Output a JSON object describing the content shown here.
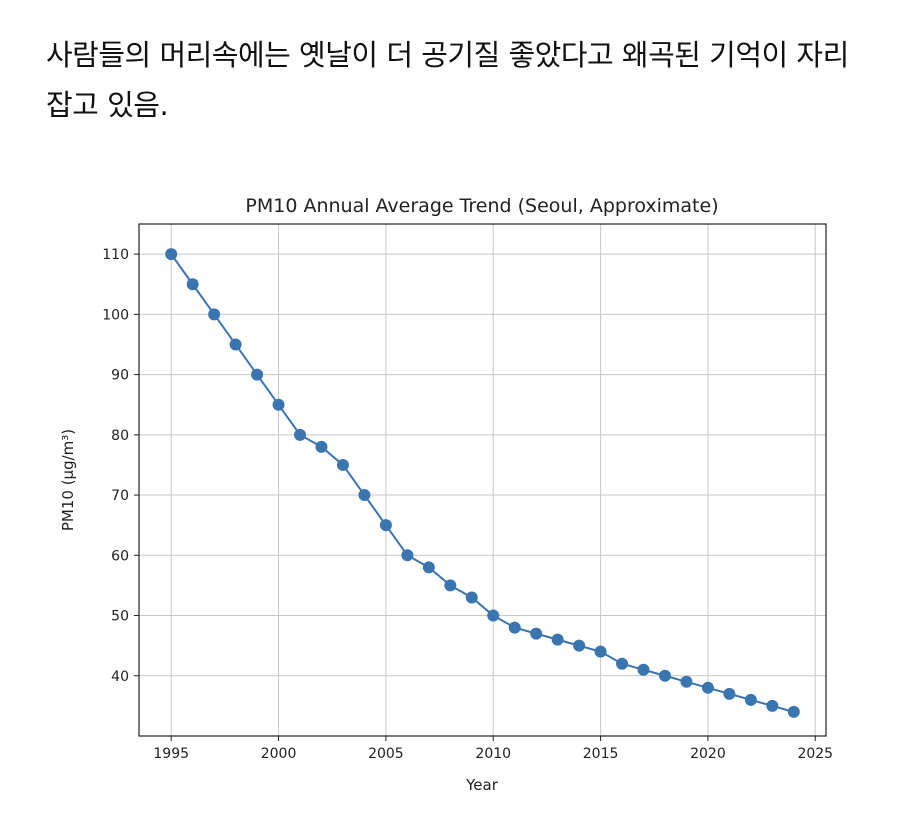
{
  "caption": "사람들의 머리속에는 옛날이 더 공기질 좋았다고 왜곡된 기억이 자리잡고 있음.",
  "chart_data": {
    "type": "line",
    "title": "PM10 Annual Average Trend (Seoul, Approximate)",
    "xlabel": "Year",
    "ylabel": "PM10 (µg/m³)",
    "x": [
      1995,
      1996,
      1997,
      1998,
      1999,
      2000,
      2001,
      2002,
      2003,
      2004,
      2005,
      2006,
      2007,
      2008,
      2009,
      2010,
      2011,
      2012,
      2013,
      2014,
      2015,
      2016,
      2017,
      2018,
      2019,
      2020,
      2021,
      2022,
      2023,
      2024
    ],
    "values": [
      110,
      105,
      100,
      95,
      90,
      85,
      80,
      78,
      75,
      70,
      65,
      60,
      58,
      55,
      53,
      50,
      48,
      47,
      46,
      45,
      44,
      42,
      41,
      40,
      39,
      38,
      37,
      36,
      35,
      34
    ],
    "xlim": [
      1993.5,
      2025.5
    ],
    "ylim": [
      30,
      115
    ],
    "xticks": [
      1995,
      2000,
      2005,
      2010,
      2015,
      2020,
      2025
    ],
    "yticks": [
      40,
      50,
      60,
      70,
      80,
      90,
      100,
      110
    ],
    "grid": true,
    "marker": "circle",
    "color": "#3a75b0"
  }
}
